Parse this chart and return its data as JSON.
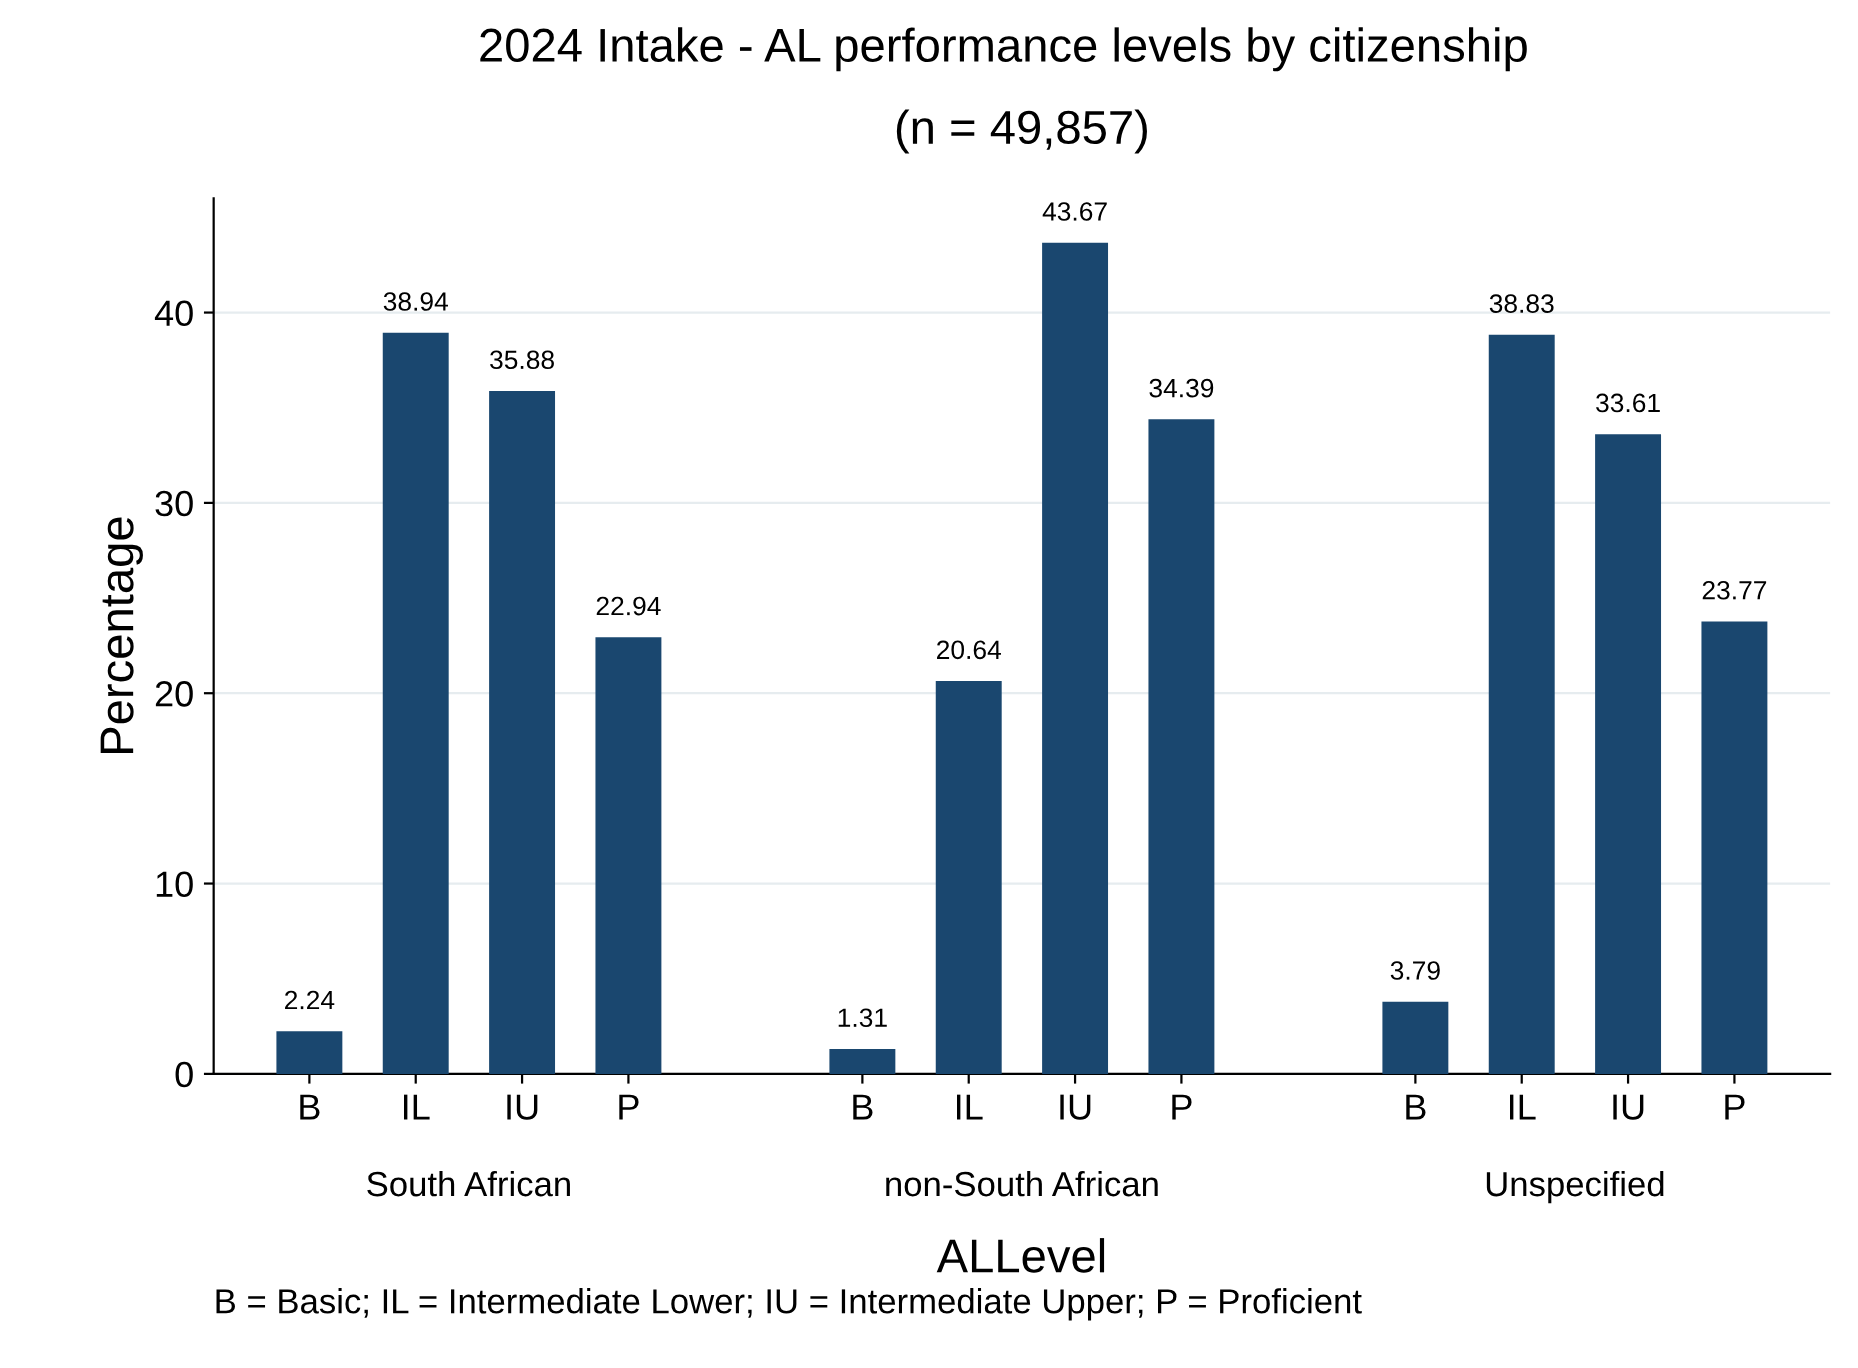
{
  "chart_data": {
    "type": "bar",
    "title": "2024 Intake - AL performance levels by citizenship",
    "subtitle": "(n = 49,857)",
    "xlabel": "ALLevel",
    "ylabel": "Percentage",
    "categories": [
      "B",
      "IL",
      "IU",
      "P",
      "B",
      "IL",
      "IU",
      "P",
      "B",
      "IL",
      "IU",
      "P"
    ],
    "values": [
      2.24,
      38.94,
      35.88,
      22.94,
      1.31,
      20.64,
      43.67,
      34.39,
      3.79,
      38.83,
      33.61,
      23.77
    ],
    "color": "#1a476f",
    "ylim": [
      0,
      46
    ],
    "yticks": [
      0,
      10,
      20,
      30,
      40
    ],
    "grid": "y",
    "data_labels": true,
    "annotations": [
      "South African",
      "non-South African",
      "Unspecified",
      "B = Basic; IL = Intermediate Lower; IU = Intermediate Upper; P = Proficient"
    ]
  }
}
